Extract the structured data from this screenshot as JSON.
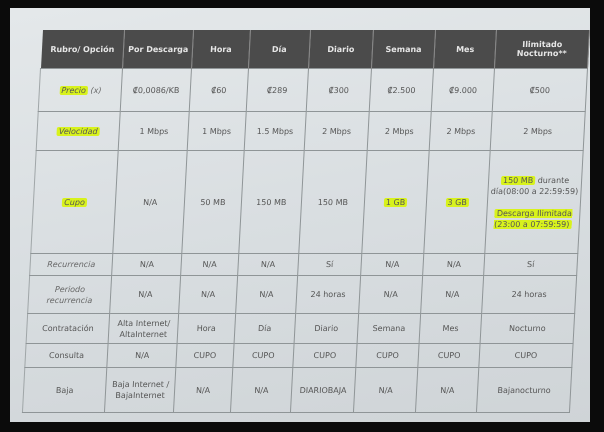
{
  "header": [
    "Rubro/ Opción",
    "Por Descarga",
    "Hora",
    "Día",
    "Diario",
    "Semana",
    "Mes",
    "Ilimitado Nocturno**"
  ],
  "rows": [
    {
      "label": "Precio",
      "label_suffix": "(x)",
      "cells": [
        "₡0,0086/KB",
        "₡60",
        "₡289",
        "₡300",
        "₡2.500",
        "₡9.000",
        "₡500"
      ]
    },
    {
      "label": "Velocidad",
      "cells": [
        "1 Mbps",
        "1 Mbps",
        "1.5 Mbps",
        "2 Mbps",
        "2 Mbps",
        "2 Mbps",
        "2 Mbps"
      ]
    },
    {
      "label": "Cupo",
      "cells": [
        "N/A",
        "50 MB",
        "150 MB",
        "150 MB",
        "1 GB",
        "3 GB"
      ],
      "nocturno": {
        "a": "150 MB",
        "b": "durante día(08:00 a 22:59:59)",
        "c": "Descarga Ilimitada (23:00 a 07:59:59)"
      }
    },
    {
      "label": "Recurrencia",
      "cells": [
        "N/A",
        "N/A",
        "N/A",
        "Sí",
        "N/A",
        "N/A",
        "Sí"
      ]
    },
    {
      "label": "Periodo recurrencia",
      "cells": [
        "N/A",
        "N/A",
        "N/A",
        "24 horas",
        "N/A",
        "N/A",
        "24 horas"
      ]
    },
    {
      "label": "Contratación",
      "cells": [
        "Alta Internet/ AltaInternet",
        "Hora",
        "Día",
        "Diario",
        "Semana",
        "Mes",
        "Nocturno"
      ]
    },
    {
      "label": "Consulta",
      "cells": [
        "N/A",
        "CUPO",
        "CUPO",
        "CUPO",
        "CUPO",
        "CUPO",
        "CUPO"
      ]
    },
    {
      "label": "Baja",
      "cells": [
        "Baja Internet / BajaInternet",
        "N/A",
        "N/A",
        "DIARIOBAJA",
        "N/A",
        "N/A",
        "Bajanocturno"
      ]
    }
  ],
  "highlight_color": "#d8f21c"
}
